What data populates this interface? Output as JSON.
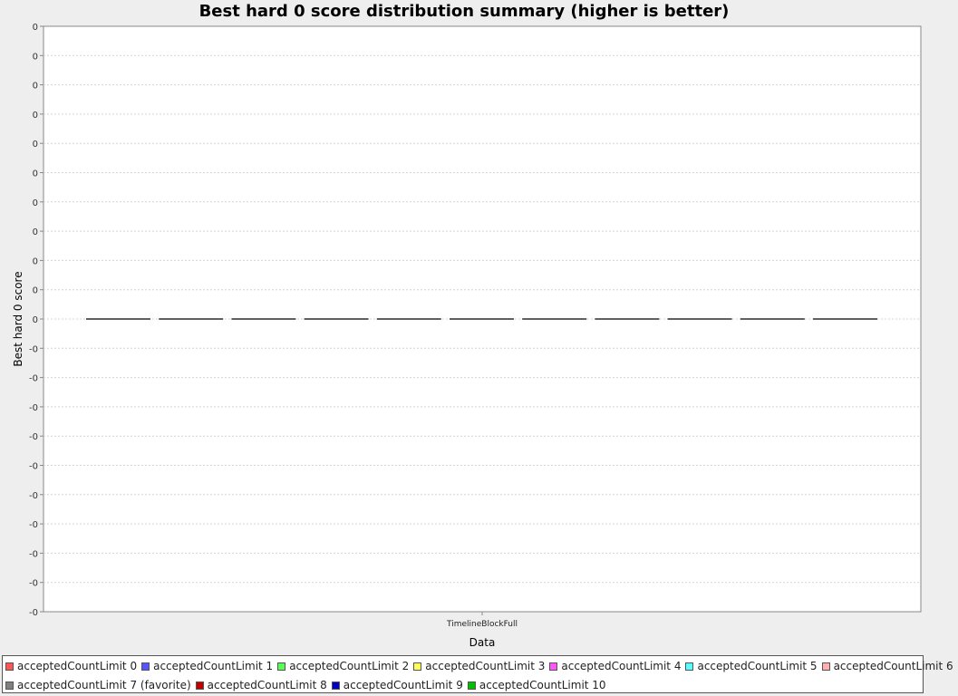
{
  "chart_data": {
    "type": "box",
    "title": "Best hard 0 score distribution summary (higher is better)",
    "xlabel": "Data",
    "ylabel": "Best hard 0 score",
    "categories": [
      "TimelineBlockFull"
    ],
    "y_tick_labels": [
      "0",
      "0",
      "0",
      "0",
      "0",
      "0",
      "0",
      "0",
      "0",
      "0",
      "0",
      "-0",
      "-0",
      "-0",
      "-0",
      "-0",
      "-0",
      "-0",
      "-0",
      "-0",
      "-0"
    ],
    "grid": true,
    "legend_position": "bottom",
    "series": [
      {
        "name": "acceptedCountLimit 0",
        "color": "#ff5555",
        "values": [
          0
        ]
      },
      {
        "name": "acceptedCountLimit 1",
        "color": "#5555ff",
        "values": [
          0
        ]
      },
      {
        "name": "acceptedCountLimit 2",
        "color": "#55ff55",
        "values": [
          0
        ]
      },
      {
        "name": "acceptedCountLimit 3",
        "color": "#ffff55",
        "values": [
          0
        ]
      },
      {
        "name": "acceptedCountLimit 4",
        "color": "#ff55ff",
        "values": [
          0
        ]
      },
      {
        "name": "acceptedCountLimit 5",
        "color": "#55ffff",
        "values": [
          0
        ]
      },
      {
        "name": "acceptedCountLimit 6",
        "color": "#ffafaf",
        "values": [
          0
        ]
      },
      {
        "name": "acceptedCountLimit 7 (favorite)",
        "color": "#808080",
        "values": [
          0
        ]
      },
      {
        "name": "acceptedCountLimit 8",
        "color": "#c00000",
        "values": [
          0
        ]
      },
      {
        "name": "acceptedCountLimit 9",
        "color": "#0000c0",
        "values": [
          0
        ]
      },
      {
        "name": "acceptedCountLimit 10",
        "color": "#00c000",
        "values": [
          0
        ]
      }
    ]
  }
}
